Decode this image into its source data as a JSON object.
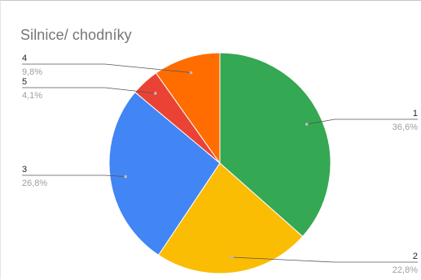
{
  "chart_data": {
    "type": "pie",
    "title": "Silnice/ chodníky",
    "slices": [
      {
        "label": "1",
        "value": 36.6,
        "percent_label": "36,6%",
        "color": "#34A853"
      },
      {
        "label": "2",
        "value": 22.8,
        "percent_label": "22,8%",
        "color": "#FBBC04"
      },
      {
        "label": "3",
        "value": 26.8,
        "percent_label": "26,8%",
        "color": "#4285F4"
      },
      {
        "label": "5",
        "value": 4.1,
        "percent_label": "4,1%",
        "color": "#EA4335"
      },
      {
        "label": "4",
        "value": 9.8,
        "percent_label": "9,8%",
        "color": "#FF6D01"
      }
    ],
    "legend": "none"
  }
}
